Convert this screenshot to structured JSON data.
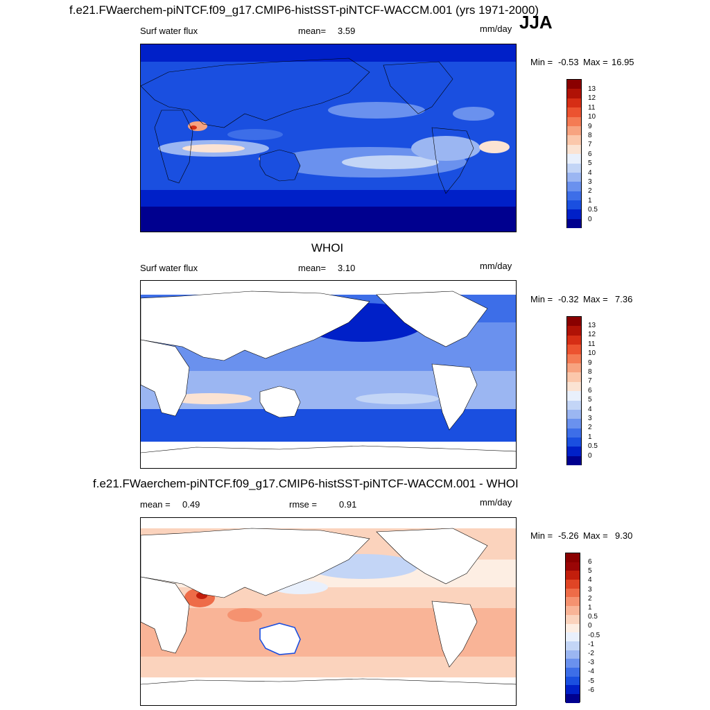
{
  "header": {
    "title": "f.e21.FWaerchem-piNTCF.f09_g17.CMIP6-histSST-piNTCF-WACCM.001 (yrs 1971-2000)",
    "season": "JJA"
  },
  "colors": {
    "seq": [
      "#00008f",
      "#0020c8",
      "#1a4fe0",
      "#3d6ee8",
      "#6a91ee",
      "#9bb6f2",
      "#c3d5f6",
      "#e9f0fc",
      "#fbe3d3",
      "#fbc7ab",
      "#f7a380",
      "#f47b54",
      "#ec5330",
      "#d62e15",
      "#b01206",
      "#8a0000"
    ],
    "diff": [
      "#00008f",
      "#0020c8",
      "#1a4fe0",
      "#3d6ee8",
      "#6a91ee",
      "#9bb6f2",
      "#c3d5f6",
      "#e9f0fc",
      "#fdeee3",
      "#fbd3bd",
      "#f9b497",
      "#f59270",
      "#ee6c48",
      "#e04525",
      "#c21e0c",
      "#9a0606",
      "#8a0000"
    ]
  },
  "panels": [
    {
      "variable": "Surf water flux",
      "stat1_label": "mean=",
      "stat1_value": "3.59",
      "units": "mm/day",
      "min_label": "Min =",
      "min_value": "-0.53",
      "max_label": "Max =",
      "max_value": "16.95",
      "levels": [
        "13",
        "12",
        "11",
        "10",
        "9",
        "8",
        "7",
        "6",
        "5",
        "4",
        "3",
        "2",
        "1",
        "0.5",
        "0"
      ]
    },
    {
      "name": "WHOI",
      "variable": "Surf water flux",
      "stat1_label": "mean=",
      "stat1_value": "3.10",
      "units": "mm/day",
      "min_label": "Min =",
      "min_value": "-0.32",
      "max_label": "Max =",
      "max_value": "7.36",
      "levels": [
        "13",
        "12",
        "11",
        "10",
        "9",
        "8",
        "7",
        "6",
        "5",
        "4",
        "3",
        "2",
        "1",
        "0.5",
        "0"
      ]
    },
    {
      "name": "f.e21.FWaerchem-piNTCF.f09_g17.CMIP6-histSST-piNTCF-WACCM.001 - WHOI",
      "stat1_label": "mean =",
      "stat1_value": "0.49",
      "stat2_label": "rmse =",
      "stat2_value": "0.91",
      "units": "mm/day",
      "min_label": "Min =",
      "min_value": "-5.26",
      "max_label": "Max =",
      "max_value": "9.30",
      "levels": [
        "6",
        "5",
        "4",
        "3",
        "2",
        "1",
        "0.5",
        "0",
        "-0.5",
        "-1",
        "-2",
        "-3",
        "-4",
        "-5",
        "-6"
      ]
    }
  ]
}
